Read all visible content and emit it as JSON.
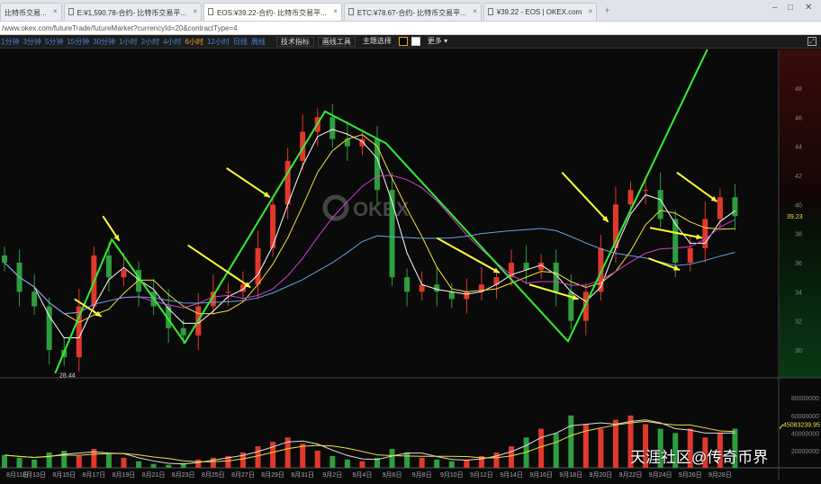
{
  "tabs": [
    {
      "label": "比特币交易..."
    },
    {
      "label": "E:¥1,590.78-合约- 比特币交易平..."
    },
    {
      "label": "EOS:¥39.22-合约- 比特币交易平...",
      "active": true
    },
    {
      "label": "ETC:¥78.67-合约- 比特币交易平..."
    },
    {
      "label": "¥39.22 - EOS | OKEX.com"
    }
  ],
  "url": "/www.okex.com/futureTrade/futureMarket?currencyId=20&contractType=4",
  "toolbar": {
    "periods": [
      "1分钟",
      "3分钟",
      "5分钟",
      "15分钟",
      "30分钟",
      "1小时",
      "2小时",
      "4小时",
      "6小时",
      "12小时",
      "日线",
      "周线"
    ],
    "active_period": "6小时",
    "indicators": "技术指标",
    "drawing": "画线工具",
    "theme": "主题选择",
    "more": "更多 ▾"
  },
  "colors": {
    "up": "#e0392b",
    "down": "#2e9e3e",
    "trend": "#33ee33",
    "arrow": "#ffff33",
    "ma": [
      "#ffffff",
      "#f0e040",
      "#d040d0",
      "#6aa0e0"
    ]
  },
  "logo": "OKEX",
  "price_axis": {
    "ticks": [
      "48",
      "46",
      "44",
      "42",
      "40",
      "38",
      "36",
      "34",
      "32",
      "30"
    ],
    "last_price": "39.23",
    "low_label": "28.44"
  },
  "volume_axis": {
    "ticks": [
      "80000000",
      "60000000",
      "40000000",
      "20000000"
    ],
    "last_volume": "45083239.95"
  },
  "dates": [
    "8月11日",
    "8月13日",
    "8月15日",
    "8月17日",
    "8月19日",
    "8月21日",
    "8月23日",
    "8月25日",
    "8月27日",
    "8月29日",
    "8月31日",
    "9月2日",
    "9月4日",
    "9月6日",
    "9月8日",
    "9月10日",
    "9月12日",
    "9月14日",
    "9月16日",
    "9月18日",
    "9月20日",
    "9月22日",
    "9月24日",
    "9月26日",
    "9月28日"
  ],
  "chart_data": {
    "type": "candlestick",
    "closes": [
      36,
      34,
      33,
      30,
      29.5,
      33,
      36.5,
      35,
      35.5,
      34,
      33,
      31.5,
      31,
      33,
      34,
      34,
      34.5,
      37,
      40,
      43,
      45,
      46,
      44.5,
      44,
      44.5,
      41,
      35,
      34,
      34.5,
      34,
      33.5,
      34,
      34.5,
      35,
      36,
      35.5,
      36,
      34,
      32,
      34,
      37,
      40,
      41,
      41,
      39,
      36,
      37,
      39,
      40.5,
      39.2
    ],
    "volumes_millions": [
      15,
      12,
      10,
      18,
      20,
      14,
      22,
      16,
      12,
      8,
      5,
      4,
      6,
      10,
      12,
      14,
      18,
      25,
      30,
      35,
      28,
      20,
      14,
      10,
      8,
      12,
      22,
      18,
      12,
      10,
      8,
      10,
      14,
      18,
      25,
      35,
      45,
      40,
      60,
      50,
      45,
      55,
      60,
      50,
      45,
      40,
      45,
      35,
      40,
      45
    ]
  },
  "trend_lines": [
    {
      "points": [
        [
          3.4,
          28.4
        ],
        [
          7.2,
          37.6
        ],
        [
          12.1,
          30.5
        ],
        [
          21.5,
          46.4
        ],
        [
          25.6,
          44.2
        ],
        [
          37.8,
          30.6
        ],
        [
          48.7,
          54
        ]
      ]
    }
  ],
  "arrows": [
    [
      [
        4.7,
        33.5
      ],
      [
        6.5,
        32.3
      ]
    ],
    [
      [
        6.6,
        39.2
      ],
      [
        7.7,
        37.5
      ]
    ],
    [
      [
        12.3,
        37.2
      ],
      [
        16.5,
        34.3
      ]
    ],
    [
      [
        14.9,
        42.5
      ],
      [
        17.8,
        40.5
      ]
    ],
    [
      [
        29,
        37.7
      ],
      [
        33.2,
        35.3
      ]
    ],
    [
      [
        35.2,
        34.5
      ],
      [
        38.5,
        33.5
      ]
    ],
    [
      [
        37.4,
        42.2
      ],
      [
        40.5,
        38.8
      ]
    ],
    [
      [
        43.3,
        38.4
      ],
      [
        46.8,
        37.7
      ]
    ],
    [
      [
        43.2,
        36.3
      ],
      [
        45.3,
        35.5
      ]
    ],
    [
      [
        45.1,
        42.2
      ],
      [
        47.8,
        40.2
      ]
    ]
  ],
  "watermark": "天涯社区@传奇币界"
}
